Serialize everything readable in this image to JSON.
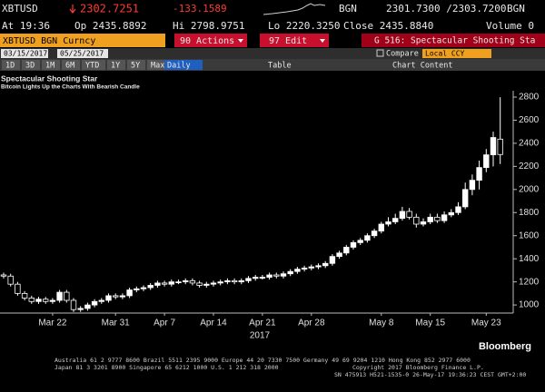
{
  "header": {
    "ticker": "XBTUSD",
    "last": "2302.7251",
    "change": "-133.1589",
    "source": "BGN",
    "bid_ask": "2301.7300 /2303.7200",
    "source_right": "BGN"
  },
  "quote_line": {
    "at": "At 19:36",
    "open": "Op 2435.8892",
    "high": "Hi 2798.9751",
    "low": "Lo 2220.3250",
    "close": "Close 2435.8840",
    "volume": "Volume 0"
  },
  "toolbar": {
    "security": "XBTUSD BGN Curncy",
    "actions": "90 Actions",
    "edit": "97 Edit",
    "page": "G 516: Spectacular Shooting Sta",
    "start_date": "03/15/2017",
    "end_date": "05/25/2017",
    "compare": "Compare",
    "currency": "Local CCY",
    "periods": [
      "1D",
      "3D",
      "1M",
      "6M",
      "YTD",
      "1Y",
      "5Y",
      "Max"
    ],
    "frequency": "Daily",
    "table": "Table",
    "chart_content": "Chart Content"
  },
  "chart_data": {
    "type": "candlestick",
    "title": "Spectacular Shooting Star",
    "subtitle": "Bitcoin Lights Up the Charts With Bearish Candle",
    "x_label": "2017",
    "categories": [
      null,
      null,
      null,
      null,
      null,
      null,
      null,
      "Mar 22",
      null,
      null,
      null,
      null,
      null,
      null,
      null,
      null,
      "Mar 31",
      null,
      null,
      null,
      null,
      null,
      null,
      "Apr 7",
      null,
      null,
      null,
      null,
      null,
      null,
      "Apr 14",
      null,
      null,
      null,
      null,
      null,
      null,
      "Apr 21",
      null,
      null,
      null,
      null,
      null,
      null,
      "Apr 28",
      null,
      null,
      null,
      null,
      null,
      null,
      null,
      null,
      null,
      "May 8",
      null,
      null,
      null,
      null,
      null,
      null,
      "May 15",
      null,
      null,
      null,
      null,
      null,
      null,
      null,
      "May 23",
      null,
      null
    ],
    "open": [
      1260,
      1250,
      1180,
      1100,
      1060,
      1030,
      1050,
      1030,
      1040,
      1110,
      1040,
      960,
      970,
      1000,
      1030,
      1040,
      1080,
      1070,
      1080,
      1130,
      1140,
      1150,
      1170,
      1190,
      1180,
      1200,
      1200,
      1210,
      1190,
      1170,
      1180,
      1190,
      1200,
      1210,
      1200,
      1210,
      1230,
      1240,
      1240,
      1260,
      1250,
      1270,
      1290,
      1310,
      1320,
      1330,
      1340,
      1360,
      1420,
      1450,
      1500,
      1540,
      1560,
      1600,
      1640,
      1700,
      1720,
      1750,
      1810,
      1760,
      1700,
      1720,
      1760,
      1730,
      1780,
      1800,
      1850,
      2000,
      2080,
      2190,
      2300,
      2436
    ],
    "high": [
      1280,
      1270,
      1200,
      1120,
      1080,
      1070,
      1070,
      1060,
      1130,
      1130,
      1060,
      990,
      1020,
      1050,
      1060,
      1100,
      1100,
      1100,
      1150,
      1160,
      1170,
      1190,
      1210,
      1210,
      1220,
      1220,
      1230,
      1230,
      1210,
      1200,
      1210,
      1220,
      1230,
      1230,
      1230,
      1250,
      1260,
      1260,
      1280,
      1280,
      1290,
      1310,
      1330,
      1340,
      1350,
      1360,
      1380,
      1440,
      1470,
      1520,
      1560,
      1580,
      1620,
      1660,
      1720,
      1760,
      1790,
      1850,
      1840,
      1790,
      1750,
      1790,
      1790,
      1810,
      1830,
      1890,
      2060,
      2130,
      2250,
      2350,
      2500,
      2799
    ],
    "low": [
      1230,
      1160,
      1080,
      1040,
      1010,
      1010,
      1010,
      1010,
      1020,
      1020,
      940,
      940,
      950,
      980,
      1010,
      1020,
      1050,
      1050,
      1060,
      1110,
      1120,
      1130,
      1150,
      1160,
      1160,
      1180,
      1180,
      1170,
      1150,
      1150,
      1160,
      1170,
      1180,
      1180,
      1180,
      1190,
      1210,
      1220,
      1220,
      1230,
      1230,
      1250,
      1270,
      1290,
      1300,
      1310,
      1320,
      1340,
      1400,
      1430,
      1480,
      1520,
      1540,
      1580,
      1620,
      1680,
      1700,
      1730,
      1740,
      1670,
      1680,
      1700,
      1710,
      1710,
      1760,
      1780,
      1830,
      1950,
      2000,
      2150,
      2200,
      2220
    ],
    "close": [
      1250,
      1180,
      1100,
      1060,
      1030,
      1050,
      1030,
      1040,
      1110,
      1040,
      960,
      970,
      1000,
      1030,
      1040,
      1080,
      1070,
      1080,
      1130,
      1140,
      1150,
      1170,
      1190,
      1180,
      1200,
      1200,
      1210,
      1190,
      1170,
      1180,
      1190,
      1200,
      1210,
      1200,
      1210,
      1230,
      1240,
      1240,
      1260,
      1250,
      1270,
      1290,
      1310,
      1320,
      1330,
      1340,
      1360,
      1420,
      1450,
      1500,
      1540,
      1560,
      1600,
      1640,
      1700,
      1720,
      1750,
      1810,
      1760,
      1700,
      1720,
      1760,
      1730,
      1780,
      1800,
      1850,
      2000,
      2080,
      2190,
      2300,
      2450,
      2303
    ],
    "ylim": [
      930,
      2855
    ],
    "yticks": [
      1000,
      1200,
      1400,
      1600,
      1800,
      2000,
      2200,
      2400,
      2600,
      2800
    ],
    "up_color": "#ffffff",
    "down_color": "#000000",
    "edge_color": "#ffffff"
  },
  "footer": {
    "brand": "Bloomberg",
    "contacts": "Australia 61 2 9777 8600 Brazil 5511 2395 9000 Europe 44 20 7330 7500 Germany 49 69 9204 1210 Hong Kong 852 2977 6000",
    "contacts_2": "Japan 81 3 3201 8900        Singapore 65 6212 1000        U.S. 1 212 318 2000",
    "copyright": "Copyright 2017 Bloomberg Finance L.P.",
    "session": "SN 475913 H521-1535-0 26-May-17 19:36:23 CEST GMT+2:00"
  }
}
